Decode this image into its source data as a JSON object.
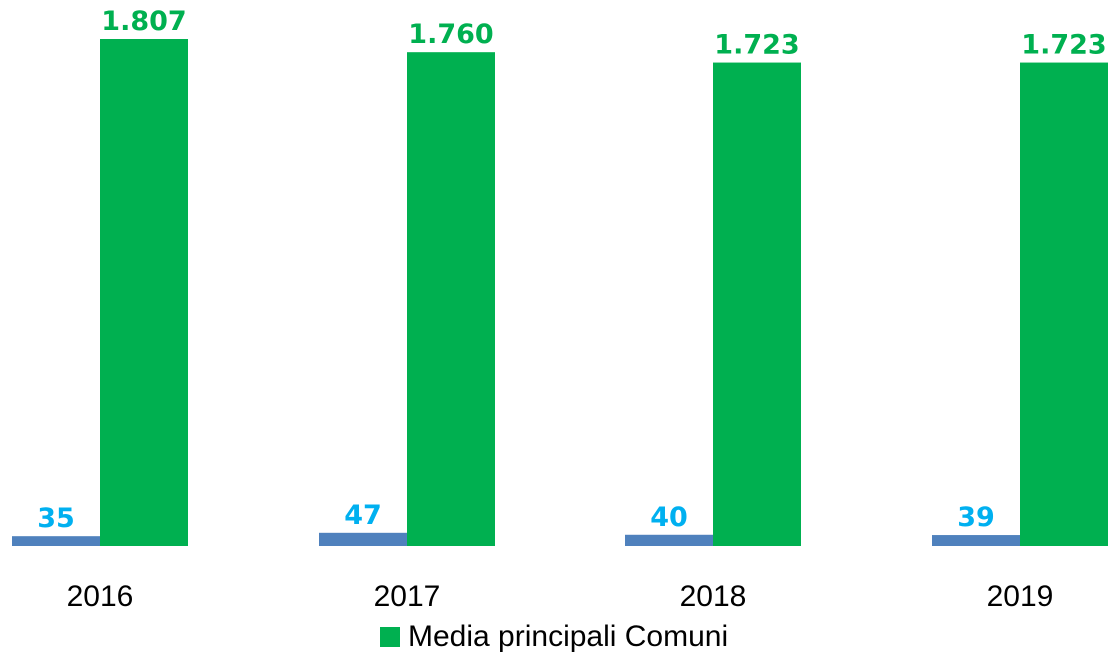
{
  "chart_data": {
    "type": "bar",
    "categories": [
      "2016",
      "2017",
      "2018",
      "2019"
    ],
    "series": [
      {
        "values": [
          35,
          47,
          40,
          39
        ],
        "labels": [
          "35",
          "47",
          "40",
          "39"
        ],
        "color": "#4f81bd",
        "label_color": "#00b0f0"
      },
      {
        "name": "Media principali Comuni",
        "values": [
          1807,
          1760,
          1723,
          1723
        ],
        "labels": [
          "1.807",
          "1.760",
          "1.723",
          "1.723"
        ],
        "color": "#00b050",
        "label_color": "#00b050"
      }
    ],
    "ylim": [
      0,
      1807
    ],
    "grid": false,
    "legend_position": "bottom"
  }
}
